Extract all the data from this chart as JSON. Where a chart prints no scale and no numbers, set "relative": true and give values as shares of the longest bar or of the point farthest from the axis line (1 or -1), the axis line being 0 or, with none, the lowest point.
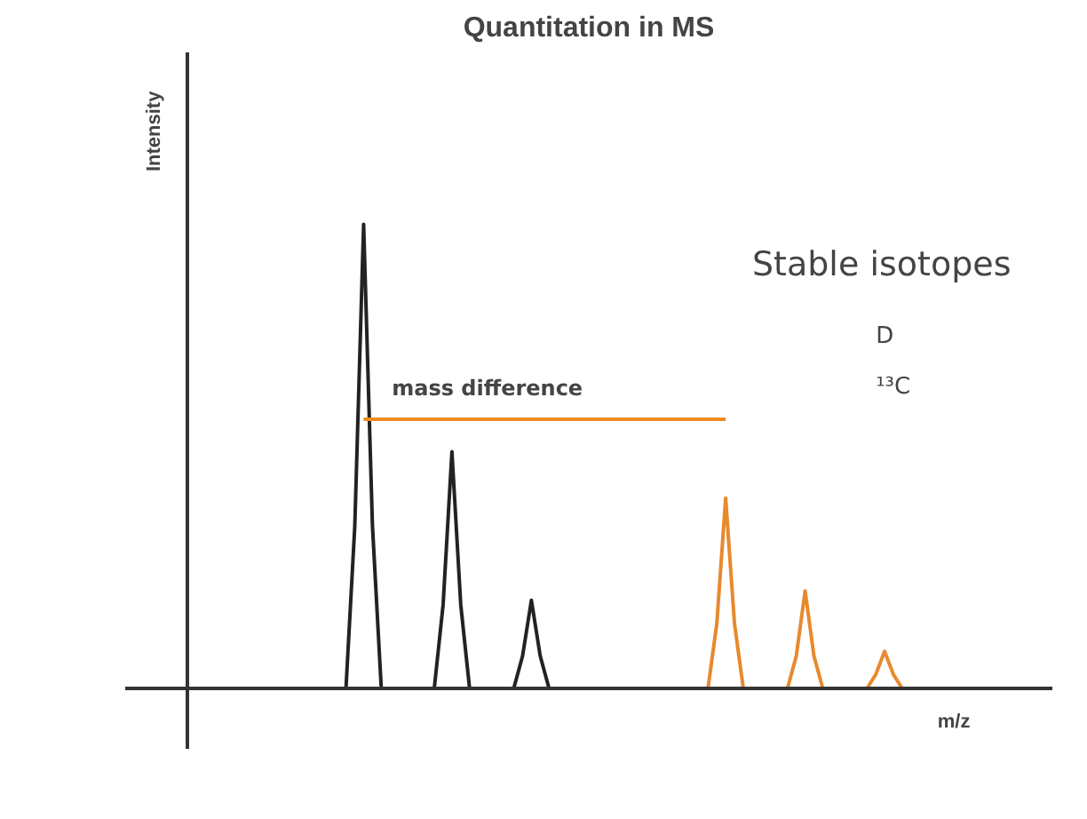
{
  "chart_data": {
    "type": "line",
    "title": "Quantitation in MS",
    "xlabel": "m/z",
    "ylabel": "Intensity",
    "relative": true,
    "marker": "none",
    "line_style": "solid",
    "annotations": [
      "Stable isotopes",
      "D",
      "¹³C",
      "mass difference"
    ],
    "categories": [
      null,
      null,
      null,
      null,
      null,
      null,
      null,
      null,
      null,
      null,
      null,
      null,
      null,
      null,
      null,
      null,
      null,
      null,
      null,
      null,
      null,
      null,
      null,
      null,
      null,
      null,
      null,
      null,
      null,
      null,
      null,
      null,
      null,
      null,
      null,
      null,
      null,
      null,
      null,
      null,
      null,
      null,
      null,
      null,
      null,
      null,
      null,
      null,
      null,
      null,
      null,
      null,
      null,
      null,
      null,
      null,
      null,
      null,
      null,
      null,
      null,
      null,
      null,
      null,
      null,
      null,
      null,
      null,
      null,
      null,
      null,
      null,
      null,
      null,
      null,
      null,
      null,
      null,
      null,
      null,
      null,
      null,
      null,
      null,
      null,
      null,
      null,
      null,
      null,
      null,
      null,
      null,
      null,
      null,
      null,
      null,
      null,
      null
    ],
    "series": [
      {
        "color": "#222222",
        "values": [
          0,
          0,
          0,
          0,
          0,
          0,
          0,
          0,
          0,
          0,
          0,
          0,
          0,
          0,
          0,
          0,
          0,
          0,
          0.35,
          1,
          0.35,
          0,
          0,
          0,
          0,
          0,
          0,
          0,
          0.18,
          0.51,
          0.18,
          0,
          0,
          0,
          0,
          0,
          0,
          0.07,
          0.19,
          0.07,
          0,
          null,
          null,
          null,
          null,
          null,
          null,
          null,
          null,
          null,
          null,
          null,
          null,
          null,
          null,
          null,
          null,
          null,
          null,
          null,
          null,
          null,
          null,
          null,
          null,
          null,
          null,
          null,
          null,
          null,
          null,
          null,
          null,
          null,
          null,
          null,
          null,
          null,
          null,
          null,
          null,
          null,
          null,
          null,
          null,
          null,
          null,
          null,
          null,
          null,
          null,
          null,
          null,
          null,
          null,
          null,
          null,
          null
        ]
      },
      {
        "color": "#e8892e",
        "values": [
          null,
          null,
          null,
          null,
          null,
          null,
          null,
          null,
          null,
          null,
          null,
          null,
          null,
          null,
          null,
          null,
          null,
          null,
          null,
          null,
          null,
          null,
          null,
          null,
          null,
          null,
          null,
          null,
          null,
          null,
          null,
          null,
          null,
          null,
          null,
          null,
          null,
          null,
          null,
          null,
          null,
          null,
          null,
          null,
          null,
          null,
          null,
          null,
          null,
          null,
          null,
          null,
          null,
          null,
          null,
          null,
          null,
          0,
          0,
          0.14,
          0.41,
          0.14,
          0,
          0,
          0,
          0,
          0,
          0,
          0.07,
          0.21,
          0.07,
          0,
          0,
          0,
          0,
          0,
          0,
          0.03,
          0.08,
          0.03,
          0,
          null,
          null,
          null,
          null,
          null,
          null,
          null,
          null,
          null,
          null,
          null,
          null,
          null,
          null,
          null,
          null,
          null
        ]
      },
      {
        "color": "#ef8a1c",
        "values": [
          null,
          null,
          null,
          null,
          null,
          null,
          null,
          null,
          null,
          null,
          null,
          null,
          null,
          null,
          null,
          null,
          null,
          null,
          null,
          0.58,
          0.58,
          0.58,
          0.58,
          0.58,
          0.58,
          0.58,
          0.58,
          0.58,
          0.58,
          0.58,
          0.58,
          0.58,
          0.58,
          0.58,
          0.58,
          0.58,
          0.58,
          0.58,
          0.58,
          0.58,
          0.58,
          0.58,
          0.58,
          0.58,
          0.58,
          0.58,
          0.58,
          0.58,
          0.58,
          0.58,
          0.58,
          0.58,
          0.58,
          0.58,
          0.58,
          0.58,
          0.58,
          0.58,
          0.58,
          0.58,
          0.58,
          null,
          null,
          null,
          null,
          null,
          null,
          null,
          null,
          null,
          null,
          null,
          null,
          null,
          null,
          null,
          null,
          null,
          null,
          null,
          null,
          null,
          null,
          null,
          null,
          null,
          null,
          null,
          null,
          null,
          null,
          null,
          null,
          null,
          null,
          null,
          null,
          null
        ]
      }
    ]
  }
}
